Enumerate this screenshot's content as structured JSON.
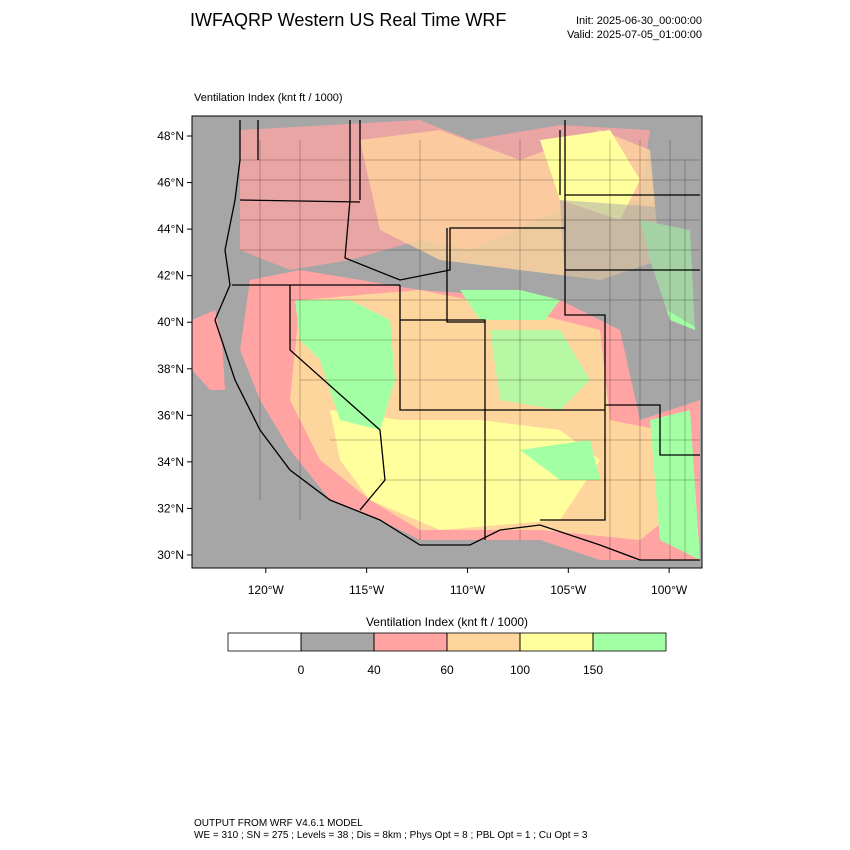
{
  "header": {
    "title": "IWFAQRP Western US Real Time WRF",
    "init": "Init: 2025-06-30_00:00:00",
    "valid": "Valid: 2025-07-05_01:00:00"
  },
  "map": {
    "field_label": "Ventilation Index   (knt ft / 1000)",
    "lon_range": [
      -123.66,
      -98.37
    ],
    "lat_range": [
      29.44,
      48.86
    ],
    "lat_ticks": [
      {
        "value": 30,
        "label": "30°N"
      },
      {
        "value": 32,
        "label": "32°N"
      },
      {
        "value": 34,
        "label": "34°N"
      },
      {
        "value": 36,
        "label": "36°N"
      },
      {
        "value": 38,
        "label": "38°N"
      },
      {
        "value": 40,
        "label": "40°N"
      },
      {
        "value": 42,
        "label": "42°N"
      },
      {
        "value": 44,
        "label": "44°N"
      },
      {
        "value": 46,
        "label": "46°N"
      },
      {
        "value": 48,
        "label": "48°N"
      }
    ],
    "lon_ticks": [
      {
        "value": -120,
        "label": "120°W"
      },
      {
        "value": -115,
        "label": "115°W"
      },
      {
        "value": -110,
        "label": "110°W"
      },
      {
        "value": -105,
        "label": "105°W"
      },
      {
        "value": -100,
        "label": "100°W"
      }
    ]
  },
  "colorbar": {
    "title": "Ventilation Index   (knt ft / 1000)",
    "levels": [
      0,
      40,
      60,
      100,
      150
    ],
    "colors": [
      "#ffffff",
      "#a6a6a6",
      "#ffa3a3",
      "#ffd59e",
      "#ffff9e",
      "#a3ffa3"
    ]
  },
  "footer": {
    "line1": "OUTPUT FROM WRF V4.6.1 MODEL",
    "line2": "WE = 310 ; SN = 275 ; Levels = 38 ; Dis = 8km ; Phys Opt = 8 ; PBL Opt = 1 ; Cu Opt = 3"
  }
}
